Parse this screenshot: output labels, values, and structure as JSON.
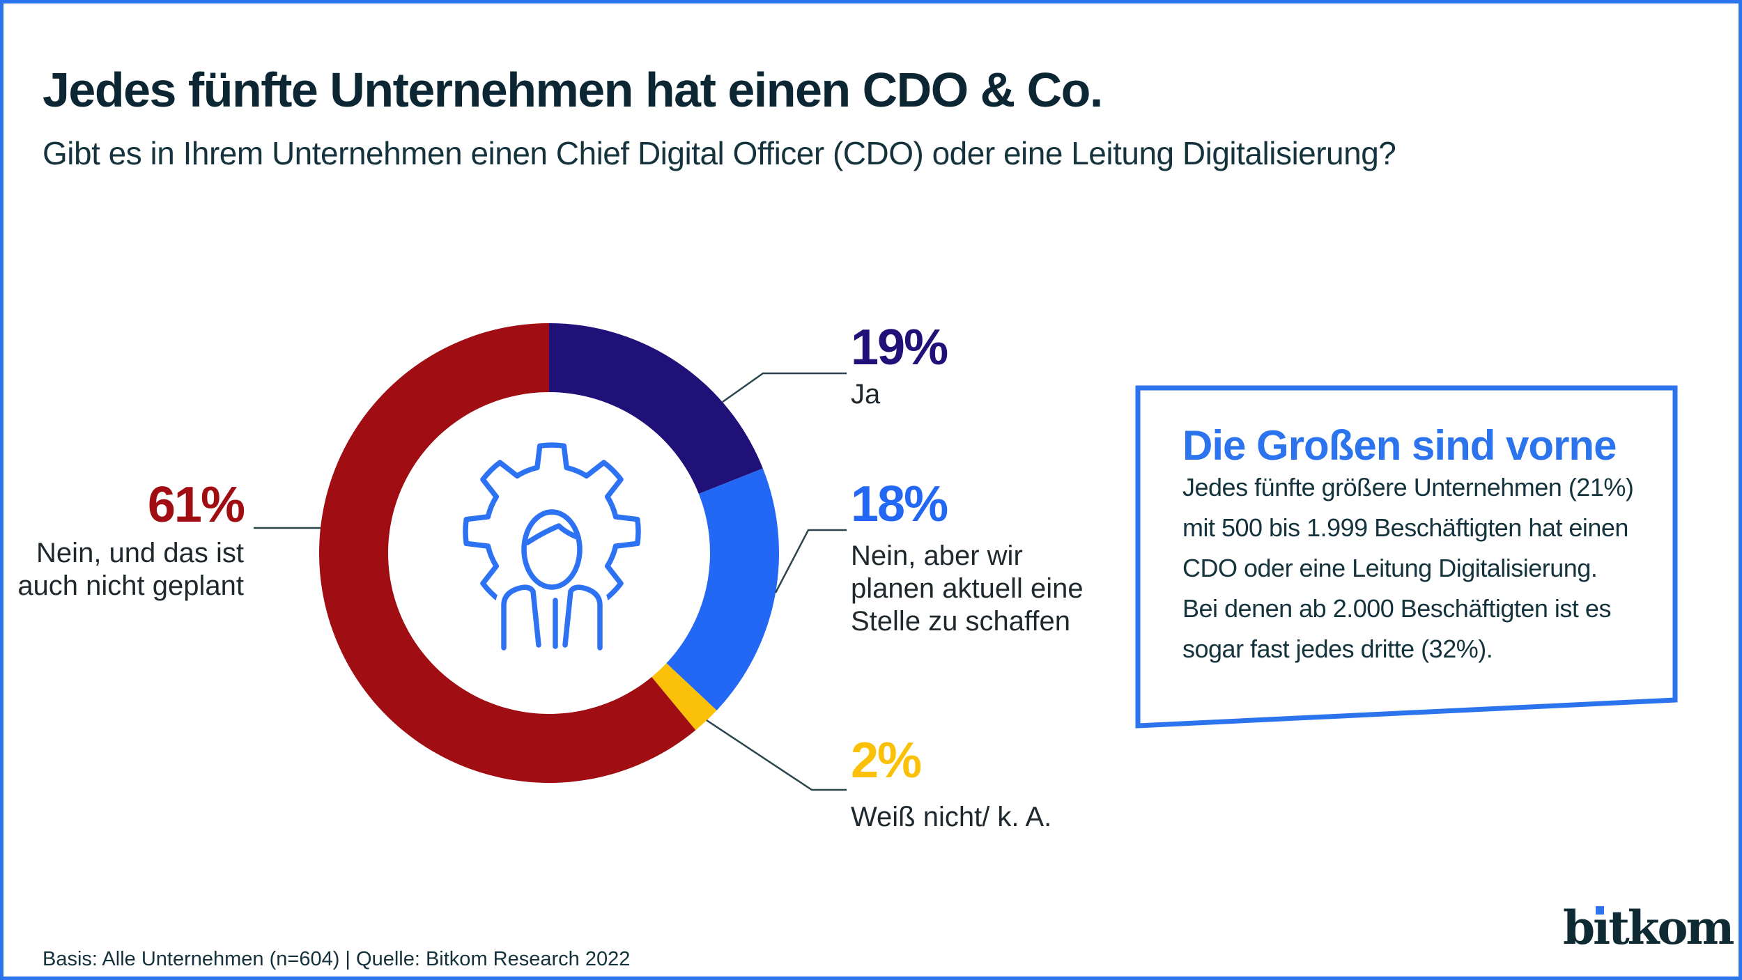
{
  "page": {
    "title": "Jedes fünfte Unternehmen hat einen CDO & Co.",
    "subtitle": "Gibt es in Ihrem Unternehmen einen Chief Digital Officer (CDO) oder eine Leitung Digitalisierung?",
    "footer": "Basis: Alle Unternehmen (n=604) | Quelle: Bitkom Research 2022",
    "logo_text_b": "b",
    "logo_text_rest": "tkom",
    "border_color": "#2C74EE"
  },
  "colors": {
    "accent_blue": "#2C74EE",
    "navy": "#1F1178",
    "blue": "#2268F4",
    "yellow": "#FBC108",
    "red": "#A00D12",
    "dark": "#14333D",
    "icon_blue": "#2D72F2",
    "leader_line": "#2A454D"
  },
  "chart_data": {
    "type": "pie",
    "variant": "donut",
    "start_angle_deg_from_top": 0,
    "direction": "clockwise",
    "inner_radius_ratio": 0.7,
    "center_icon": "person-in-gear",
    "segments": [
      {
        "label": "Ja",
        "value": 19,
        "color": "#1F1178"
      },
      {
        "label": "Nein, aber wir planen aktuell eine Stelle zu schaffen",
        "value": 18,
        "color": "#2268F4"
      },
      {
        "label": "Weiß nicht/ k. A.",
        "value": 2,
        "color": "#FBC108"
      },
      {
        "label": "Nein, und das ist auch nicht geplant",
        "value": 61,
        "color": "#A00D12"
      }
    ]
  },
  "labels": {
    "ja": {
      "pct": "19%",
      "text": "Ja"
    },
    "plan": {
      "pct": "18%",
      "lines": [
        "Nein, aber wir",
        "planen aktuell eine",
        "Stelle zu schaffen"
      ]
    },
    "weiss": {
      "pct": "2%",
      "text": "Weiß nicht/ k. A."
    },
    "nein": {
      "pct": "61%",
      "lines": [
        "Nein, und das ist",
        "auch nicht geplant"
      ]
    }
  },
  "infobox": {
    "title": "Die Großen sind vorne",
    "body_lines": [
      "Jedes fünfte größere Unternehmen (21%)",
      "mit 500 bis 1.999 Beschäftigten hat einen",
      "CDO oder eine Leitung Digitalisierung.",
      "Bei denen ab 2.000 Beschäftigten ist es",
      "sogar fast jedes dritte (32%)."
    ]
  }
}
